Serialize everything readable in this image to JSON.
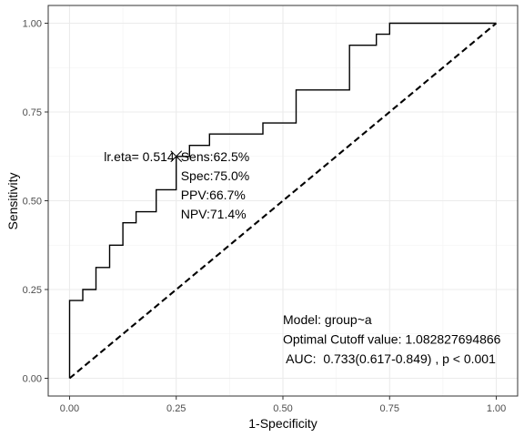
{
  "chart_data": {
    "type": "line",
    "xlabel": "1-Specificity",
    "ylabel": "Sensitivity",
    "xlim": [
      -0.05,
      1.05
    ],
    "ylim": [
      -0.05,
      1.05
    ],
    "x_ticks": [
      "0.00",
      "0.25",
      "0.50",
      "0.75",
      "1.00"
    ],
    "y_ticks": [
      "0.00",
      "0.25",
      "0.50",
      "0.75",
      "1.00"
    ],
    "grid": true,
    "series": [
      {
        "x": [
          0,
          0,
          0.031,
          0.031,
          0.062,
          0.062,
          0.094,
          0.094,
          0.094,
          0.125,
          0.125,
          0.156,
          0.156,
          0.203,
          0.203,
          0.25,
          0.25,
          0.281,
          0.281,
          0.328,
          0.328,
          0.453,
          0.453,
          0.531,
          0.531,
          0.656,
          0.656,
          0.719,
          0.719,
          0.75,
          0.75,
          1.0
        ],
        "y": [
          0,
          0.219,
          0.219,
          0.25,
          0.25,
          0.312,
          0.312,
          0.375,
          0.375,
          0.375,
          0.438,
          0.438,
          0.469,
          0.469,
          0.531,
          0.531,
          0.625,
          0.625,
          0.656,
          0.656,
          0.688,
          0.688,
          0.719,
          0.719,
          0.812,
          0.812,
          0.938,
          0.938,
          0.969,
          0.969,
          1.0,
          1.0
        ],
        "color": "#000000"
      },
      {
        "x": [
          0,
          1
        ],
        "y": [
          0,
          1
        ],
        "color": "#000000",
        "dashed": true
      }
    ],
    "optimal_point": {
      "x": 0.25,
      "y": 0.625
    },
    "annotations": {
      "cutoff_label": "lr.eta= 0.514",
      "sens": "Sens:62.5%",
      "spec": "Spec:75.0%",
      "ppv": "PPV:66.7%",
      "npv": "NPV:71.4%",
      "model": "Model: group~a",
      "cutoff_value": "Optimal Cutoff value:  1.082827694866",
      "auc": " AUC:  0.733(0.617-0.849) , p < 0.001"
    }
  }
}
